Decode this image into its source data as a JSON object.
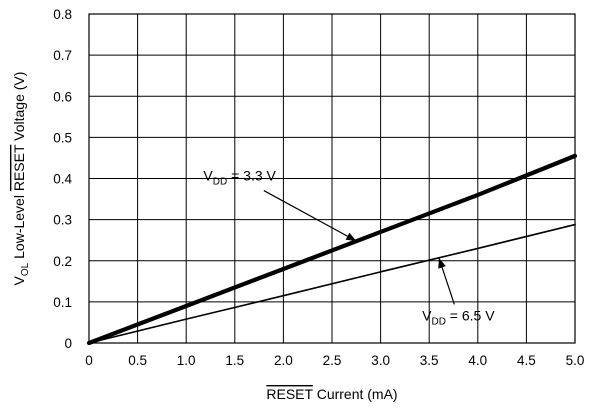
{
  "chart_data": {
    "type": "line",
    "title": "",
    "xlabel": {
      "overbar": "RESET",
      "text": " Current (mA)"
    },
    "ylabel": {
      "main": "V",
      "sub": "OL",
      "pre": " Low-Level ",
      "overbar": "RESET",
      "post": " Voltage (V)"
    },
    "xlim": [
      0,
      5.0
    ],
    "ylim": [
      0,
      0.8
    ],
    "x_ticks": [
      "0",
      "0.5",
      "1.0",
      "1.5",
      "2.0",
      "2.5",
      "3.0",
      "3.5",
      "4.0",
      "4.5",
      "5.0"
    ],
    "y_ticks": [
      "0",
      "0.1",
      "0.2",
      "0.3",
      "0.4",
      "0.5",
      "0.6",
      "0.7",
      "0.8"
    ],
    "grid": true,
    "series": [
      {
        "label_main": "V",
        "label_sub": "DD",
        "label_rest": " = 3.3 V",
        "x": [
          0,
          1.0,
          2.0,
          3.0,
          4.0,
          5.0
        ],
        "y": [
          0,
          0.09,
          0.18,
          0.27,
          0.36,
          0.455
        ],
        "color": "#000000",
        "style": "thick"
      },
      {
        "label_main": "V",
        "label_sub": "DD",
        "label_rest": " = 6.5 V",
        "x": [
          0,
          1.0,
          2.0,
          3.0,
          4.0,
          5.0
        ],
        "y": [
          0,
          0.058,
          0.115,
          0.173,
          0.23,
          0.288
        ],
        "color": "#000000",
        "style": "thin"
      }
    ],
    "annotations": [
      {
        "series": 0,
        "text_x": 1.55,
        "text_y": 0.395,
        "point_x": 2.75,
        "point_y": 0.248
      },
      {
        "series": 1,
        "text_x": 3.8,
        "text_y": 0.055,
        "point_x": 3.6,
        "point_y": 0.207
      }
    ]
  }
}
